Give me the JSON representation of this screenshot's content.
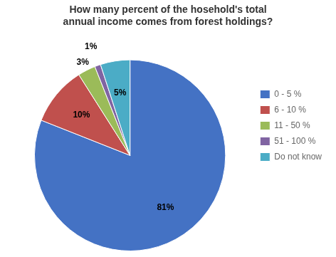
{
  "chart_data": {
    "type": "pie",
    "title": "How many percent of the hosehold's total\nannual income comes from forest holdings?",
    "categories": [
      "0 - 5 %",
      "6 - 10 %",
      "11 - 50 %",
      "51 - 100 %",
      "Do not know"
    ],
    "values": [
      81,
      10,
      3,
      1,
      5
    ],
    "value_labels": [
      "81%",
      "10%",
      "3%",
      "1%",
      "5%"
    ],
    "colors": [
      "#4472C4",
      "#C0504D",
      "#9BBB59",
      "#8064A2",
      "#4BACC6"
    ],
    "data_labels": true,
    "legend": "right"
  }
}
